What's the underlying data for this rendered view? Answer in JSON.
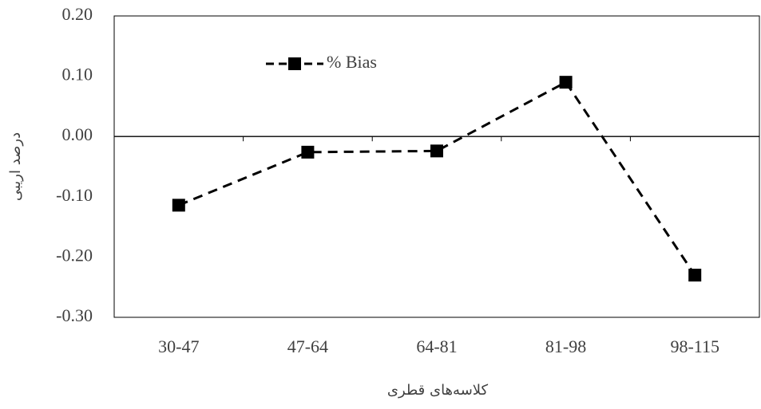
{
  "chart_data": {
    "type": "line",
    "categories": [
      "30-47",
      "47-64",
      "64-81",
      "81-98",
      "98-115"
    ],
    "series": [
      {
        "name": "% Bias",
        "color": "#000000",
        "values": [
          -0.114,
          -0.026,
          -0.024,
          0.09,
          -0.23
        ]
      }
    ],
    "ylim": [
      -0.3,
      0.2
    ],
    "yticks": [
      {
        "value": -0.3,
        "label": "-0.30"
      },
      {
        "value": -0.2,
        "label": "-0.20"
      },
      {
        "value": -0.1,
        "label": "-0.10"
      },
      {
        "value": 0,
        "label": "0.00"
      },
      {
        "value": 0.1,
        "label": "0.10"
      },
      {
        "value": 0.2,
        "label": "0.20"
      }
    ],
    "x_label": "کلاسه‌های قطری",
    "y_label": "درصد اریبی",
    "grid": false,
    "legend": "upper-left",
    "line_style": "dashed",
    "marker": "square"
  }
}
